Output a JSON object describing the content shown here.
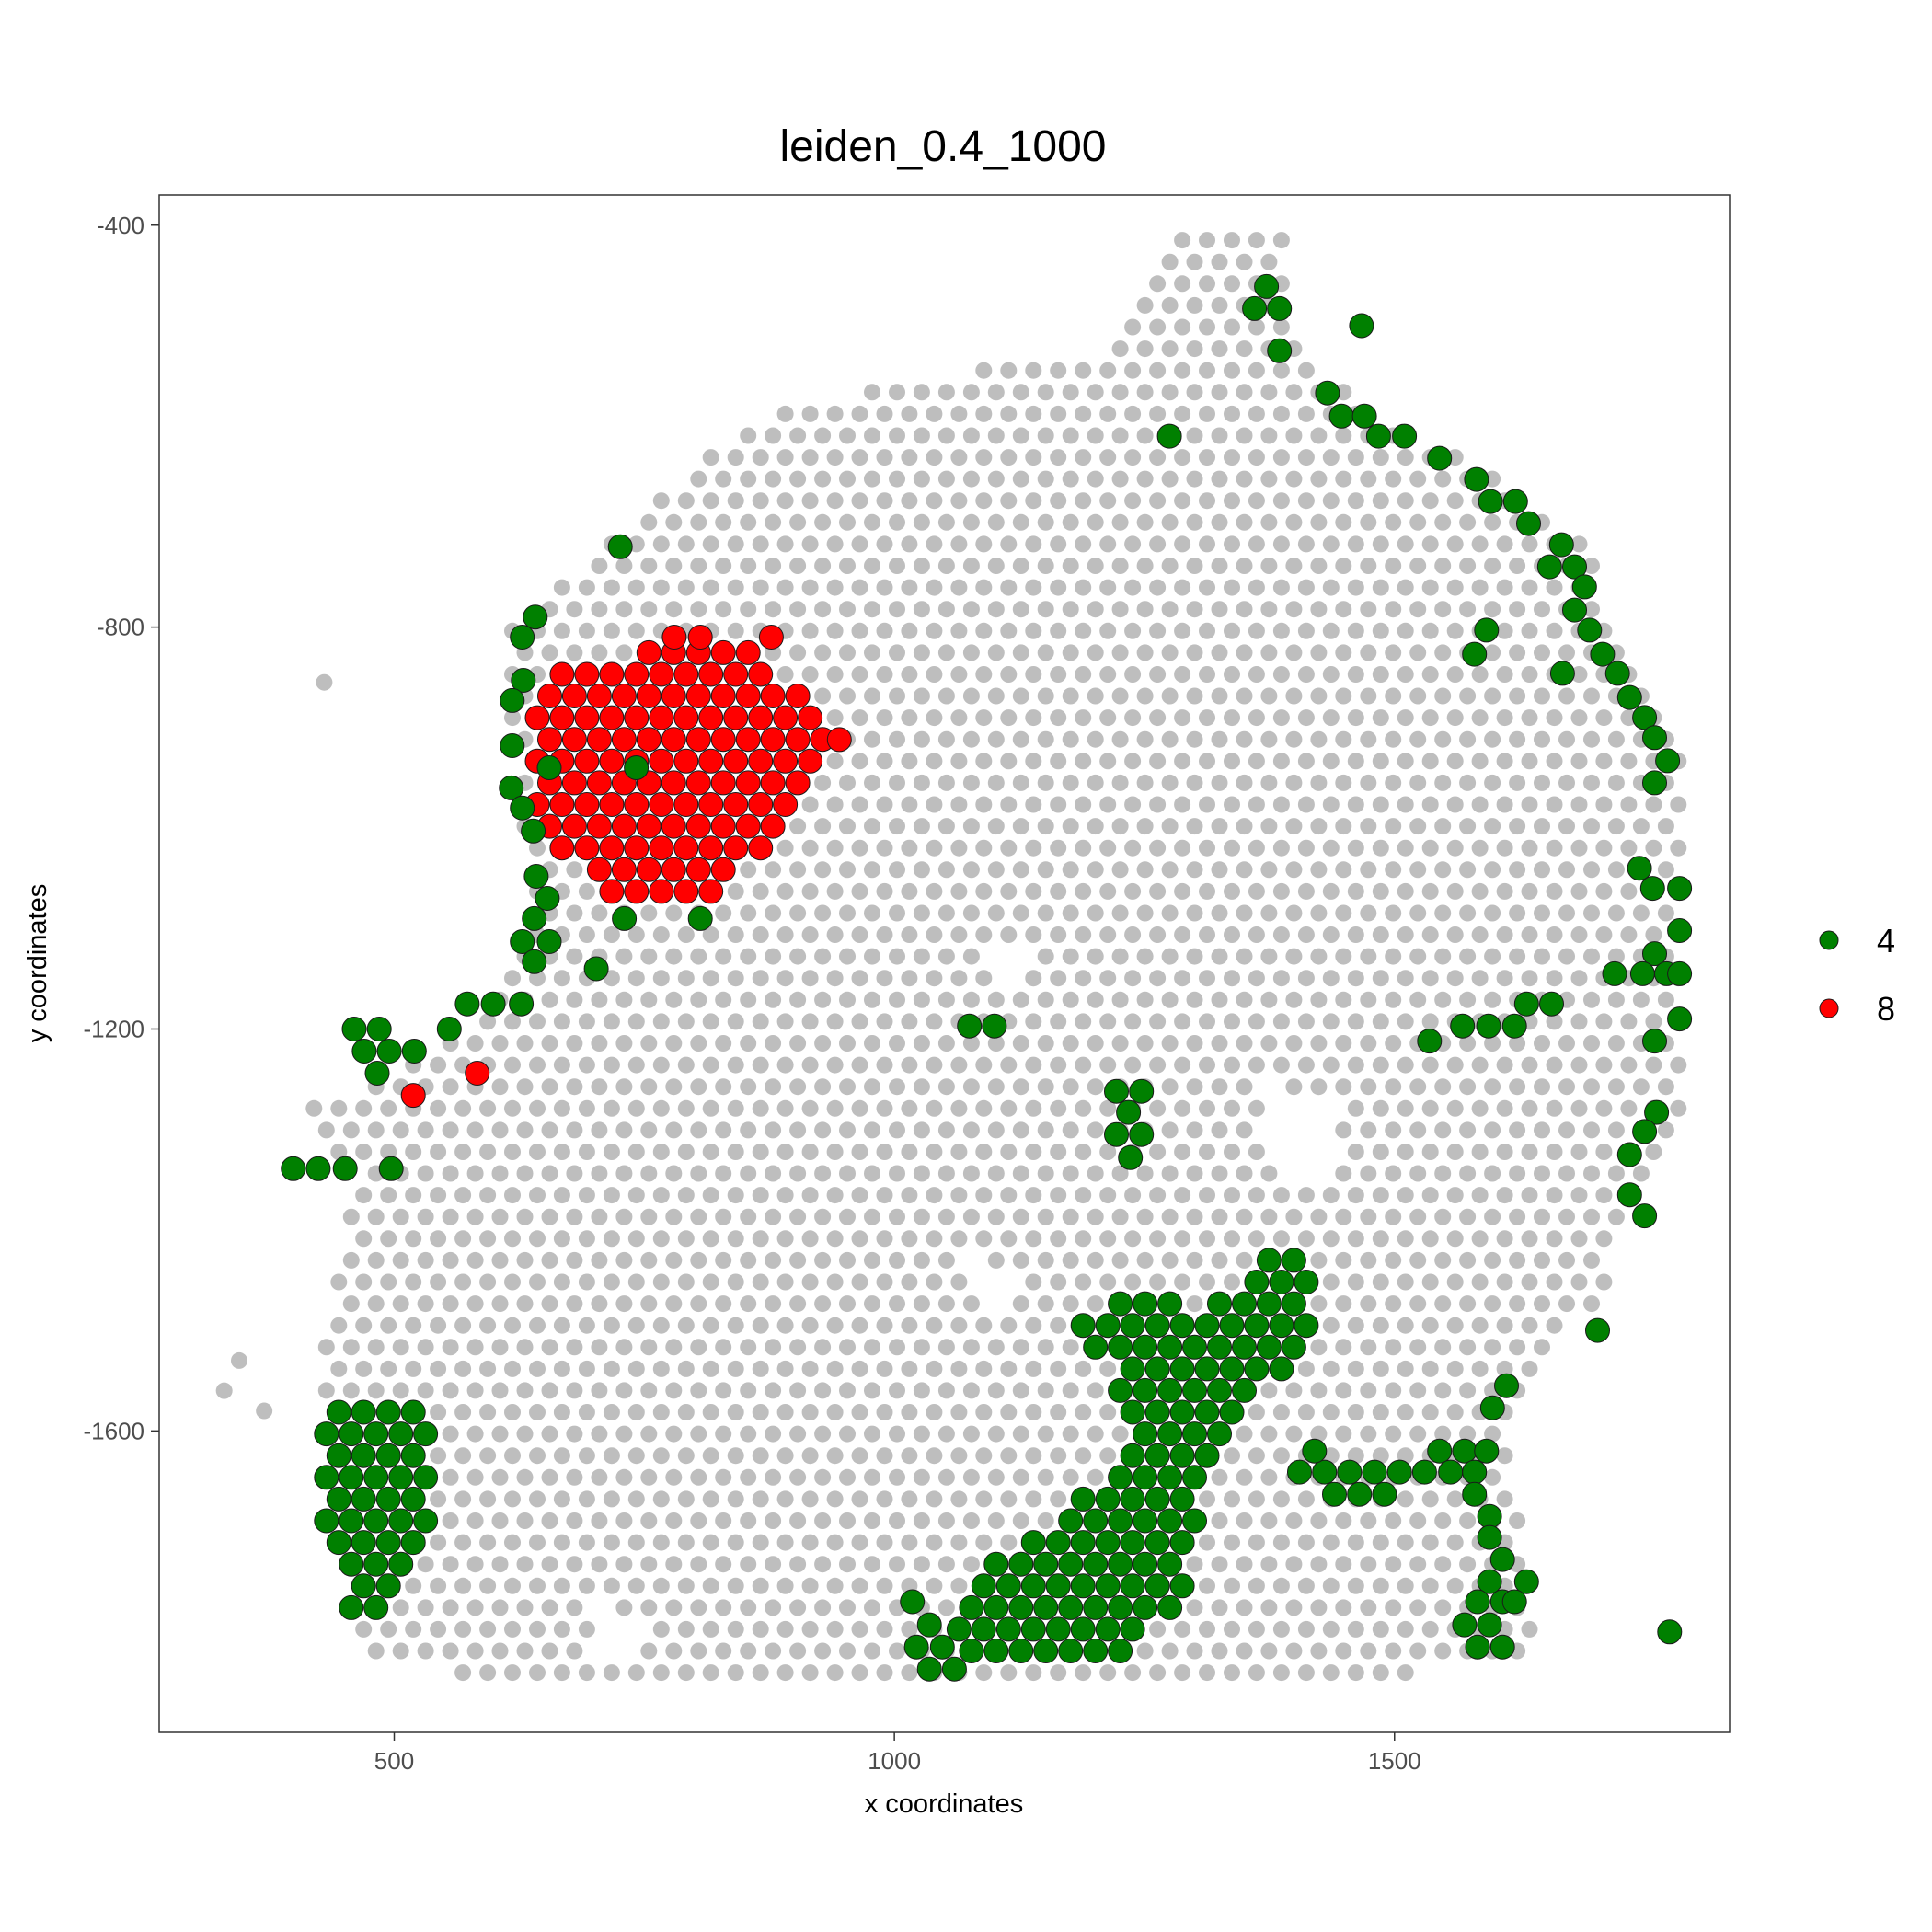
{
  "chart_data": {
    "type": "scatter",
    "title": "leiden_0.4_1000",
    "xlabel": "x coordinates",
    "ylabel": "y coordinates",
    "xlim": [
      265,
      1835
    ],
    "ylim": [
      -1900,
      -370
    ],
    "x_ticks": [
      500,
      1000,
      1500
    ],
    "y_ticks": [
      -400,
      -800,
      -1200,
      -1600
    ],
    "x_tick_labels": [
      "500",
      "1000",
      "1500"
    ],
    "y_tick_labels": [
      "-400",
      "-800",
      "-1200",
      "-1600"
    ],
    "grid": false,
    "legend_position": "right",
    "background_color": "#bebebe",
    "series": [
      {
        "name": "4",
        "color": "#008000",
        "points": [
          [
            1372,
            -461
          ],
          [
            1360,
            -483
          ],
          [
            1385,
            -483
          ],
          [
            1385,
            -525
          ],
          [
            1467,
            -500
          ],
          [
            1275,
            -610
          ],
          [
            1433,
            -567
          ],
          [
            1447,
            -590
          ],
          [
            1470,
            -590
          ],
          [
            1484,
            -610
          ],
          [
            1510,
            -610
          ],
          [
            1545,
            -632
          ],
          [
            1582,
            -653
          ],
          [
            1596,
            -675
          ],
          [
            1621,
            -675
          ],
          [
            1634,
            -697
          ],
          [
            1667,
            -718
          ],
          [
            1655,
            -740
          ],
          [
            1680,
            -740
          ],
          [
            1690,
            -760
          ],
          [
            1680,
            -783
          ],
          [
            1695,
            -803
          ],
          [
            1592,
            -803
          ],
          [
            1580,
            -827
          ],
          [
            1668,
            -846
          ],
          [
            1708,
            -827
          ],
          [
            1723,
            -846
          ],
          [
            1735,
            -870
          ],
          [
            1750,
            -890
          ],
          [
            1760,
            -910
          ],
          [
            1773,
            -933
          ],
          [
            1760,
            -955
          ],
          [
            726,
            -720
          ],
          [
            641,
            -790
          ],
          [
            628,
            -810
          ],
          [
            629,
            -853
          ],
          [
            618,
            -873
          ],
          [
            618,
            -918
          ],
          [
            617,
            -960
          ],
          [
            628,
            -980
          ],
          [
            639,
            -1003
          ],
          [
            642,
            -1048
          ],
          [
            653,
            -1070
          ],
          [
            640,
            -1090
          ],
          [
            628,
            -1113
          ],
          [
            655,
            -1113
          ],
          [
            640,
            -1133
          ],
          [
            730,
            -1090
          ],
          [
            806,
            -1090
          ],
          [
            702,
            -1140
          ],
          [
            627,
            -1175
          ],
          [
            599,
            -1175
          ],
          [
            573,
            -1175
          ],
          [
            555,
            -1200
          ],
          [
            460,
            -1200
          ],
          [
            485,
            -1200
          ],
          [
            470,
            -1222
          ],
          [
            495,
            -1222
          ],
          [
            520,
            -1222
          ],
          [
            483,
            -1244
          ],
          [
            399,
            -1339
          ],
          [
            424,
            -1339
          ],
          [
            451,
            -1339
          ],
          [
            497,
            -1339
          ],
          [
            742,
            -940
          ],
          [
            655,
            -940
          ],
          [
            1075,
            -1197
          ],
          [
            1100,
            -1197
          ],
          [
            1222,
            -1262
          ],
          [
            1247,
            -1262
          ],
          [
            1234,
            -1283
          ],
          [
            1222,
            -1305
          ],
          [
            1247,
            -1305
          ],
          [
            1236,
            -1328
          ],
          [
            1745,
            -1040
          ],
          [
            1758,
            -1060
          ],
          [
            1785,
            -1060
          ],
          [
            1785,
            -1102
          ],
          [
            1760,
            -1125
          ],
          [
            1720,
            -1145
          ],
          [
            1748,
            -1145
          ],
          [
            1772,
            -1145
          ],
          [
            1785,
            -1145
          ],
          [
            1785,
            -1190
          ],
          [
            1760,
            -1212
          ],
          [
            1657,
            -1175
          ],
          [
            1632,
            -1175
          ],
          [
            1620,
            -1197
          ],
          [
            1594,
            -1197
          ],
          [
            1568,
            -1197
          ],
          [
            1535,
            -1212
          ],
          [
            1762,
            -1283
          ],
          [
            1750,
            -1302
          ],
          [
            1735,
            -1325
          ],
          [
            1735,
            -1365
          ],
          [
            1750,
            -1386
          ],
          [
            1703,
            -1500
          ],
          [
            1598,
            -1577
          ],
          [
            1612,
            -1555
          ],
          [
            1775,
            -1800
          ],
          [
            1545,
            -1620
          ],
          [
            1570,
            -1620
          ],
          [
            1592,
            -1620
          ],
          [
            1556,
            -1641
          ],
          [
            1580,
            -1641
          ],
          [
            1530,
            -1641
          ],
          [
            1505,
            -1641
          ],
          [
            1480,
            -1641
          ],
          [
            1455,
            -1641
          ],
          [
            1430,
            -1641
          ],
          [
            1405,
            -1641
          ],
          [
            1420,
            -1620
          ],
          [
            1440,
            -1663
          ],
          [
            1465,
            -1663
          ],
          [
            1490,
            -1663
          ],
          [
            1580,
            -1663
          ],
          [
            1595,
            -1685
          ],
          [
            1595,
            -1706
          ],
          [
            1608,
            -1728
          ],
          [
            1632,
            -1750
          ],
          [
            1595,
            -1750
          ],
          [
            1608,
            -1770
          ],
          [
            1583,
            -1770
          ],
          [
            1595,
            -1793
          ],
          [
            1570,
            -1793
          ],
          [
            1583,
            -1815
          ],
          [
            1608,
            -1815
          ],
          [
            1620,
            -1770
          ],
          [
            1018,
            -1770
          ],
          [
            1035,
            -1793
          ],
          [
            1022,
            -1815
          ],
          [
            1048,
            -1815
          ],
          [
            1060,
            -1837
          ],
          [
            1035,
            -1837
          ]
        ]
      },
      {
        "name": "8",
        "color": "#ff0000",
        "points": [
          [
            780,
            -810
          ],
          [
            806,
            -810
          ],
          [
            877,
            -810
          ],
          [
            945,
            -912
          ],
          [
            519,
            -1266
          ],
          [
            583,
            -1244
          ]
        ]
      }
    ]
  }
}
